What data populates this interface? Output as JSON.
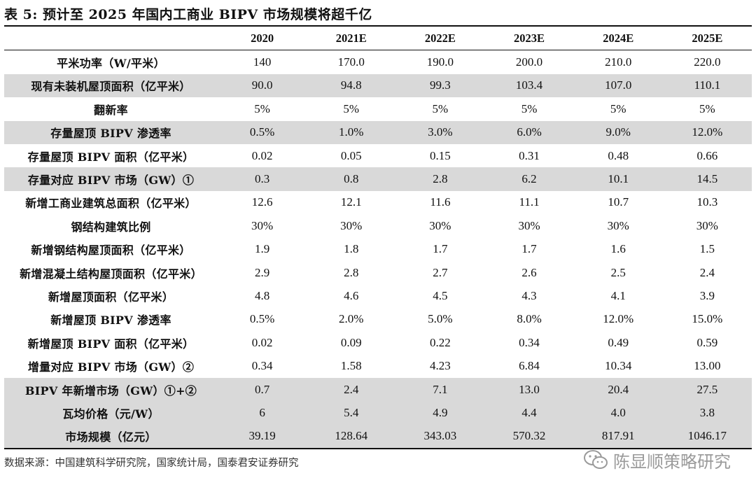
{
  "title": "表 5:  预计至 2025 年国内工商业 BIPV 市场规模将超千亿",
  "source": "数据来源：中国建筑科学研究院，国家统计局，国泰君安证券研究",
  "watermark": {
    "text": "陈显顺策略研究",
    "icon": "wechat-icon"
  },
  "colors": {
    "shade": "#d9d9d9",
    "rule": "#111111",
    "watermark": "#9a9a9a"
  },
  "chart_data": {
    "type": "table",
    "title": "表 5:  预计至 2025 年国内工商业 BIPV 市场规模将超千亿",
    "columns": [
      "",
      "2020",
      "2021E",
      "2022E",
      "2023E",
      "2024E",
      "2025E"
    ],
    "rows": [
      {
        "label": "平米功率（W/平米）",
        "values": [
          "140",
          "170.0",
          "190.0",
          "200.0",
          "210.0",
          "220.0"
        ],
        "shaded": false
      },
      {
        "label": "现有未装机屋顶面积（亿平米）",
        "values": [
          "90.0",
          "94.8",
          "99.3",
          "103.4",
          "107.0",
          "110.1"
        ],
        "shaded": true
      },
      {
        "label": "翻新率",
        "values": [
          "5%",
          "5%",
          "5%",
          "5%",
          "5%",
          "5%"
        ],
        "shaded": false
      },
      {
        "label": "存量屋顶 BIPV 渗透率",
        "values": [
          "0.5%",
          "1.0%",
          "3.0%",
          "6.0%",
          "9.0%",
          "12.0%"
        ],
        "shaded": true
      },
      {
        "label": "存量屋顶 BIPV 面积（亿平米）",
        "values": [
          "0.02",
          "0.05",
          "0.15",
          "0.31",
          "0.48",
          "0.66"
        ],
        "shaded": false
      },
      {
        "label": "存量对应 BIPV 市场（GW）①",
        "values": [
          "0.3",
          "0.8",
          "2.8",
          "6.2",
          "10.1",
          "14.5"
        ],
        "shaded": true
      },
      {
        "label": "新增工商业建筑总面积（亿平米）",
        "values": [
          "12.6",
          "12.1",
          "11.6",
          "11.1",
          "10.7",
          "10.3"
        ],
        "shaded": false
      },
      {
        "label": "钢结构建筑比例",
        "values": [
          "30%",
          "30%",
          "30%",
          "30%",
          "30%",
          "30%"
        ],
        "shaded": false
      },
      {
        "label": "新增钢结构屋顶面积（亿平米）",
        "values": [
          "1.9",
          "1.8",
          "1.7",
          "1.7",
          "1.6",
          "1.5"
        ],
        "shaded": false
      },
      {
        "label": "新增混凝土结构屋顶面积（亿平米）",
        "values": [
          "2.9",
          "2.8",
          "2.7",
          "2.6",
          "2.5",
          "2.4"
        ],
        "shaded": false
      },
      {
        "label": "新增屋顶面积（亿平米）",
        "values": [
          "4.8",
          "4.6",
          "4.5",
          "4.3",
          "4.1",
          "3.9"
        ],
        "shaded": false
      },
      {
        "label": "新增屋顶 BIPV 渗透率",
        "values": [
          "0.5%",
          "2.0%",
          "5.0%",
          "8.0%",
          "12.0%",
          "15.0%"
        ],
        "shaded": false
      },
      {
        "label": "新增屋顶 BIPV 面积（亿平米）",
        "values": [
          "0.02",
          "0.09",
          "0.22",
          "0.34",
          "0.49",
          "0.59"
        ],
        "shaded": false
      },
      {
        "label": "增量对应 BIPV 市场（GW）②",
        "values": [
          "0.34",
          "1.58",
          "4.23",
          "6.84",
          "10.34",
          "13.00"
        ],
        "shaded": false
      },
      {
        "label": "BIPV 年新增市场（GW）①+②",
        "values": [
          "0.7",
          "2.4",
          "7.1",
          "13.0",
          "20.4",
          "27.5"
        ],
        "shaded": true
      },
      {
        "label": "瓦均价格（元/W）",
        "values": [
          "6",
          "5.4",
          "4.9",
          "4.4",
          "4.0",
          "3.8"
        ],
        "shaded": true
      },
      {
        "label": "市场规模（亿元）",
        "values": [
          "39.19",
          "128.64",
          "343.03",
          "570.32",
          "817.91",
          "1046.17"
        ],
        "shaded": true
      }
    ]
  }
}
